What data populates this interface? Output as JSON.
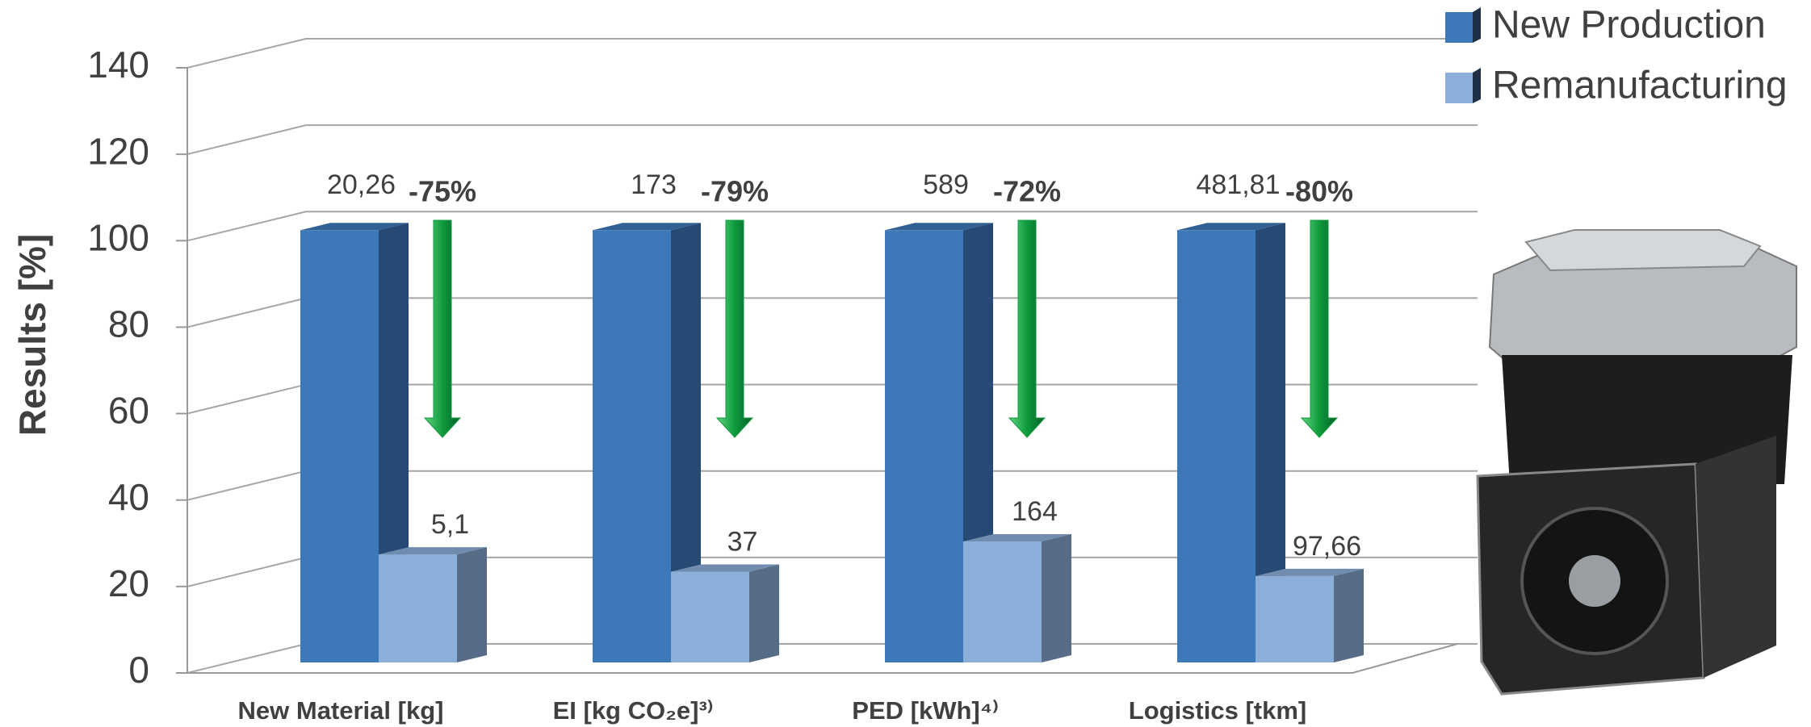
{
  "chart_data": {
    "type": "bar",
    "y_label": "Results [%]",
    "categories": [
      "New Material [kg]",
      "EI [kg CO₂e]³⁾",
      "PED [kWh]⁴⁾",
      "Logistics [tkm]"
    ],
    "series": [
      {
        "name": "New Production",
        "color": "#3d78b9",
        "values": [
          100,
          100,
          100,
          100
        ],
        "absolute_labels": [
          "20,26",
          "173",
          "589",
          "481,81"
        ]
      },
      {
        "name": "Remanufacturing",
        "color": "#8cafd9",
        "values": [
          25,
          21,
          28,
          20
        ],
        "absolute_labels": [
          "5,1",
          "37",
          "164",
          "97,66"
        ]
      }
    ],
    "reductions": [
      "-75%",
      "-79%",
      "-72%",
      "-80%"
    ],
    "arrow_color": "#0f9a3c",
    "ylim": [
      0,
      140
    ],
    "yticks": [
      0,
      20,
      40,
      60,
      80,
      100,
      120,
      140
    ],
    "grid": true
  }
}
